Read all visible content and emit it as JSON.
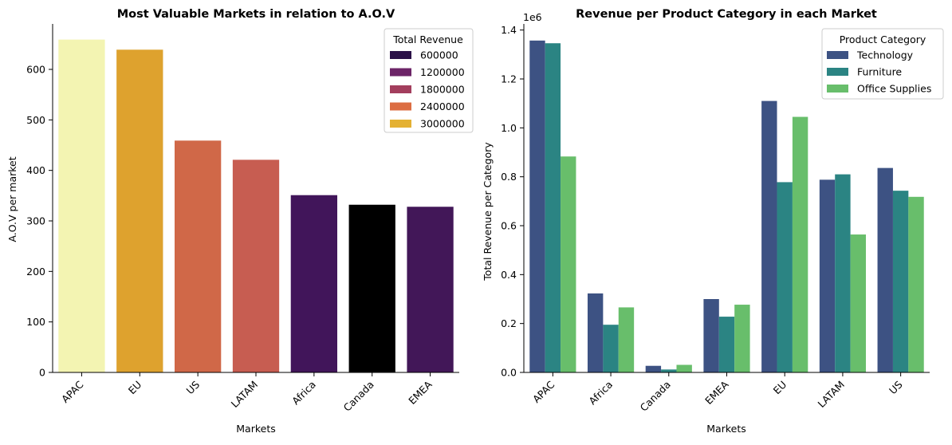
{
  "chart_data": [
    {
      "type": "bar",
      "title": "Most Valuable Markets in relation to A.O.V",
      "xlabel": "Markets",
      "ylabel": "A.O.V per market",
      "categories": [
        "APAC",
        "EU",
        "US",
        "LATAM",
        "Africa",
        "Canada",
        "EMEA"
      ],
      "values": [
        659,
        639,
        459,
        421,
        351,
        332,
        328
      ],
      "colors": [
        "#f3f4b2",
        "#dea22e",
        "#d06848",
        "#c75d51",
        "#41155a",
        "#000000",
        "#421758"
      ],
      "ylim": [
        0,
        690
      ],
      "yticks": [
        0,
        100,
        200,
        300,
        400,
        500,
        600
      ],
      "grid": false,
      "legend": {
        "title": "Total Revenue",
        "placement": "top-right",
        "entries": [
          {
            "label": "600000",
            "color": "#2b1148"
          },
          {
            "label": "1200000",
            "color": "#6c2467"
          },
          {
            "label": "1800000",
            "color": "#a33e5d"
          },
          {
            "label": "2400000",
            "color": "#dc6d42"
          },
          {
            "label": "3000000",
            "color": "#e4b133"
          }
        ]
      }
    },
    {
      "type": "bar",
      "title": "Revenue per Product Category in each Market",
      "xlabel": "Markets",
      "ylabel": "Total Revenue per Category",
      "offset_label": "1e6",
      "categories": [
        "APAC",
        "Africa",
        "Canada",
        "EMEA",
        "EU",
        "LATAM",
        "US"
      ],
      "series": [
        {
          "name": "Technology",
          "color": "#3d5283",
          "values": [
            1.357,
            0.323,
            0.027,
            0.3,
            1.11,
            0.788,
            0.836
          ]
        },
        {
          "name": "Furniture",
          "color": "#2b8483",
          "values": [
            1.346,
            0.195,
            0.012,
            0.228,
            0.778,
            0.81,
            0.743
          ]
        },
        {
          "name": "Office Supplies",
          "color": "#68be6b",
          "values": [
            0.883,
            0.266,
            0.031,
            0.277,
            1.045,
            0.564,
            0.718
          ]
        }
      ],
      "ylim": [
        0,
        1.425
      ],
      "yticks": [
        0.0,
        0.2,
        0.4,
        0.6,
        0.8,
        1.0,
        1.2,
        1.4
      ],
      "grid": false,
      "legend": {
        "title": "Product Category",
        "placement": "top-right"
      }
    }
  ]
}
